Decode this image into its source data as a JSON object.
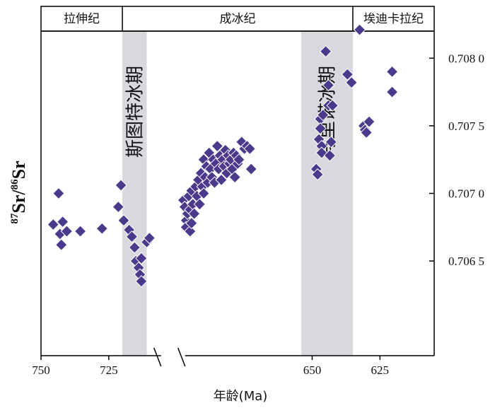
{
  "colors": {
    "point": "#4b3a8c",
    "glacial_band": "#d9d8df",
    "axis": "#000000"
  },
  "periods": [
    {
      "name": "拉伸纪",
      "from": 750,
      "to": 720
    },
    {
      "name": "成冰纪",
      "from": 720,
      "to": 635
    },
    {
      "name": "埃迪卡拉纪",
      "from": 635,
      "to": 605
    }
  ],
  "glacial_bands": [
    {
      "name": "斯图特冰期",
      "from": 720,
      "to": 711
    },
    {
      "name": "马里诺冰期",
      "from": 654,
      "to": 635
    }
  ],
  "chart_data": {
    "type": "scatter",
    "xlabel": "年龄(Ma)",
    "ylabel_parts": [
      "87",
      "Sr/",
      "86",
      "Sr"
    ],
    "xlim": [
      750,
      605
    ],
    "ylim": [
      0.7058,
      0.7082
    ],
    "axis_break_after": 700,
    "x_ticks": [
      750,
      725,
      650,
      625
    ],
    "x_tick_labels": [
      "750",
      "725",
      "650",
      "625"
    ],
    "y_ticks": [
      0.7065,
      0.707,
      0.7075,
      0.708
    ],
    "y_tick_labels": [
      "0.706 5",
      "0.707 0",
      "0.707 5",
      "0.708 0"
    ],
    "grid": false,
    "points": [
      [
        745.5,
        0.70677
      ],
      [
        743.5,
        0.707
      ],
      [
        743.0,
        0.7067
      ],
      [
        742.5,
        0.70662
      ],
      [
        742.0,
        0.70679
      ],
      [
        740.5,
        0.70672
      ],
      [
        735.5,
        0.70672
      ],
      [
        727.5,
        0.70674
      ],
      [
        721.5,
        0.7069
      ],
      [
        720.5,
        0.70706
      ],
      [
        719.5,
        0.7068
      ],
      [
        717.5,
        0.70673
      ],
      [
        716.5,
        0.70668
      ],
      [
        715.5,
        0.7066
      ],
      [
        715.0,
        0.7065
      ],
      [
        714.0,
        0.70645
      ],
      [
        713.5,
        0.7064
      ],
      [
        713.0,
        0.70635
      ],
      [
        713.0,
        0.70652
      ],
      [
        711.0,
        0.70664
      ],
      [
        710.0,
        0.70667
      ],
      [
        697.5,
        0.70695
      ],
      [
        697.0,
        0.7069
      ],
      [
        696.5,
        0.7068
      ],
      [
        696.5,
        0.70675
      ],
      [
        696.0,
        0.70685
      ],
      [
        695.5,
        0.70698
      ],
      [
        695.0,
        0.70672
      ],
      [
        695.0,
        0.70688
      ],
      [
        694.5,
        0.70702
      ],
      [
        694.5,
        0.70678
      ],
      [
        694.0,
        0.70692
      ],
      [
        693.5,
        0.70685
      ],
      [
        693.0,
        0.70705
      ],
      [
        692.5,
        0.70698
      ],
      [
        692.0,
        0.7071
      ],
      [
        691.5,
        0.70692
      ],
      [
        691.0,
        0.70715
      ],
      [
        690.5,
        0.70705
      ],
      [
        690.0,
        0.70725
      ],
      [
        690.0,
        0.707
      ],
      [
        689.5,
        0.70712
      ],
      [
        689.0,
        0.7072
      ],
      [
        688.5,
        0.70708
      ],
      [
        688.0,
        0.7073
      ],
      [
        687.5,
        0.70718
      ],
      [
        687.0,
        0.70712
      ],
      [
        686.5,
        0.70725
      ],
      [
        686.0,
        0.70708
      ],
      [
        685.5,
        0.70722
      ],
      [
        685.0,
        0.70735
      ],
      [
        684.5,
        0.70718
      ],
      [
        684.0,
        0.70728
      ],
      [
        683.5,
        0.7071
      ],
      [
        683.0,
        0.70725
      ],
      [
        682.5,
        0.7072
      ],
      [
        682.0,
        0.70732
      ],
      [
        681.5,
        0.70715
      ],
      [
        681.0,
        0.70728
      ],
      [
        680.5,
        0.70722
      ],
      [
        680.0,
        0.70725
      ],
      [
        679.5,
        0.70718
      ],
      [
        679.0,
        0.7073
      ],
      [
        678.5,
        0.70712
      ],
      [
        678.0,
        0.70728
      ],
      [
        677.5,
        0.70722
      ],
      [
        677.0,
        0.70725
      ],
      [
        676.0,
        0.70738
      ],
      [
        675.0,
        0.70733
      ],
      [
        674.0,
        0.70735
      ],
      [
        673.0,
        0.70733
      ],
      [
        672.5,
        0.70718
      ],
      [
        648.5,
        0.70718
      ],
      [
        648.0,
        0.70714
      ],
      [
        647.5,
        0.7074
      ],
      [
        647.0,
        0.70755
      ],
      [
        647.0,
        0.70748
      ],
      [
        646.5,
        0.70735
      ],
      [
        646.5,
        0.7073
      ],
      [
        646.0,
        0.70758
      ],
      [
        645.0,
        0.70805
      ],
      [
        644.0,
        0.70765
      ],
      [
        644.0,
        0.7078
      ],
      [
        643.5,
        0.70728
      ],
      [
        643.0,
        0.70738
      ],
      [
        642.5,
        0.70765
      ],
      [
        637.0,
        0.70788
      ],
      [
        635.5,
        0.70782
      ],
      [
        632.5,
        0.70821
      ],
      [
        631.0,
        0.7075
      ],
      [
        630.5,
        0.70747
      ],
      [
        630.0,
        0.70745
      ],
      [
        629.0,
        0.70753
      ],
      [
        620.5,
        0.70775
      ],
      [
        620.5,
        0.7079
      ]
    ]
  }
}
